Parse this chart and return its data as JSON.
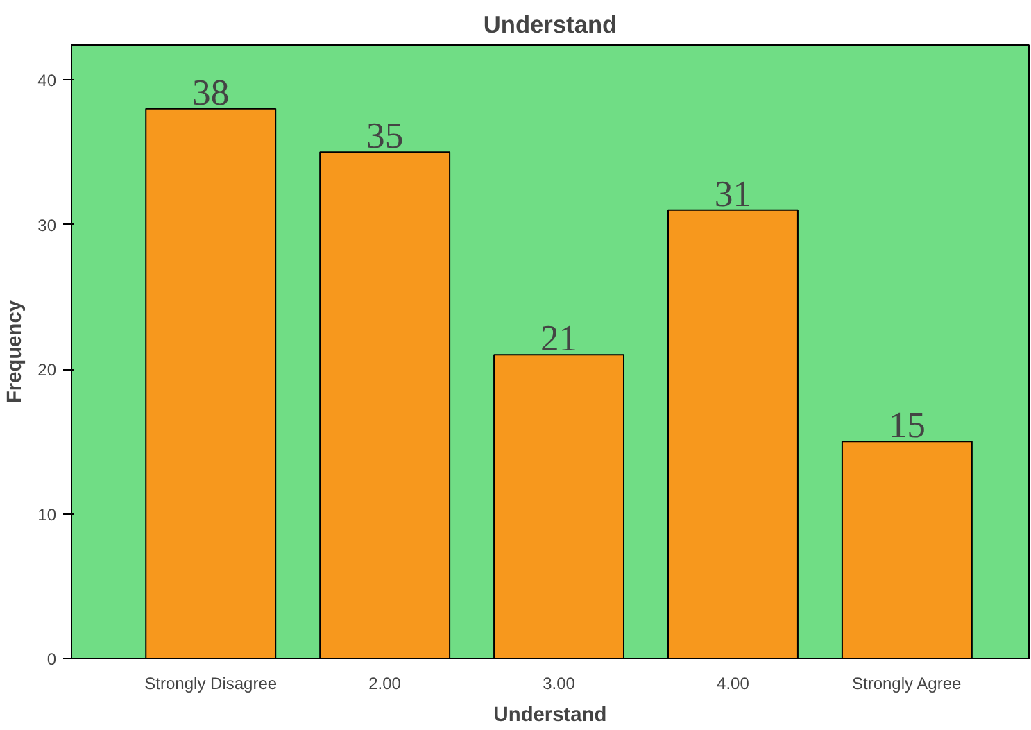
{
  "chart_data": {
    "type": "bar",
    "title": "Understand",
    "xlabel": "Understand",
    "ylabel": "Frequency",
    "categories": [
      "Strongly Disagree",
      "2.00",
      "3.00",
      "4.00",
      "Strongly Agree"
    ],
    "values": [
      38,
      35,
      21,
      31,
      15
    ],
    "color": "#f7981d",
    "ylim": [
      0,
      42.4
    ],
    "yticks": [
      0,
      10,
      20,
      30,
      40
    ],
    "grid": false,
    "data_labels": true
  }
}
